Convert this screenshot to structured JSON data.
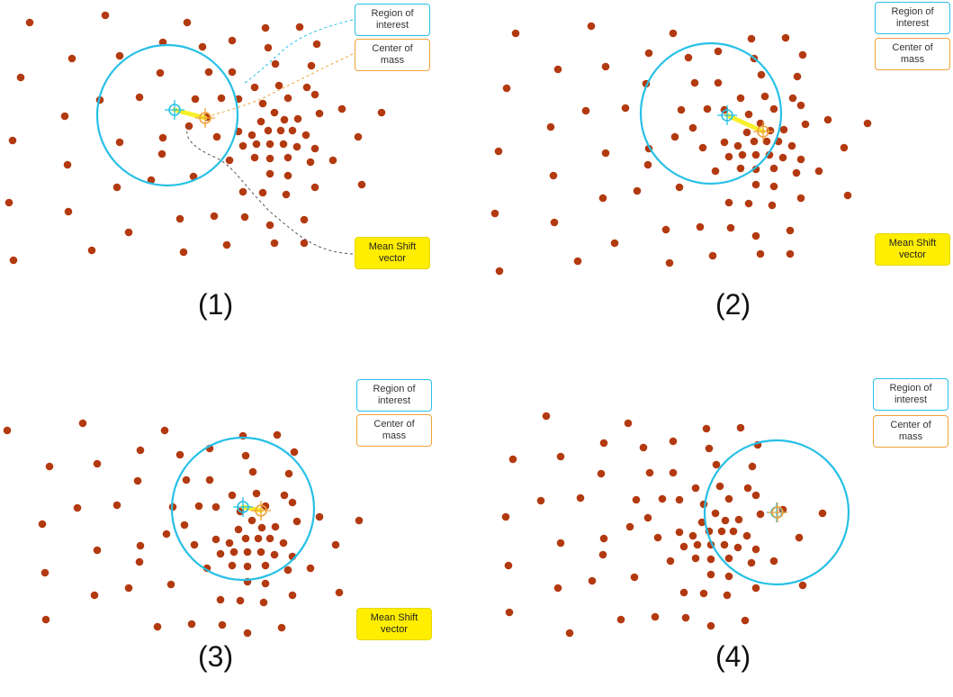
{
  "colors": {
    "point": "#b33a10",
    "region": "#27c0e6",
    "center": "#f0a23a",
    "vector": "#f7ef2a",
    "callout": "#ffee00"
  },
  "labels": {
    "region_of_interest": "Region of\ninterest",
    "center_of_mass": "Center of\nmass",
    "mean_shift_vector": "Mean Shift\nvector"
  },
  "panels": [
    {
      "caption": "(1)",
      "show_mean_shift": true
    },
    {
      "caption": "(2)",
      "show_mean_shift": true
    },
    {
      "caption": "(3)",
      "show_mean_shift": true
    },
    {
      "caption": "(4)",
      "show_mean_shift": false
    }
  ]
}
